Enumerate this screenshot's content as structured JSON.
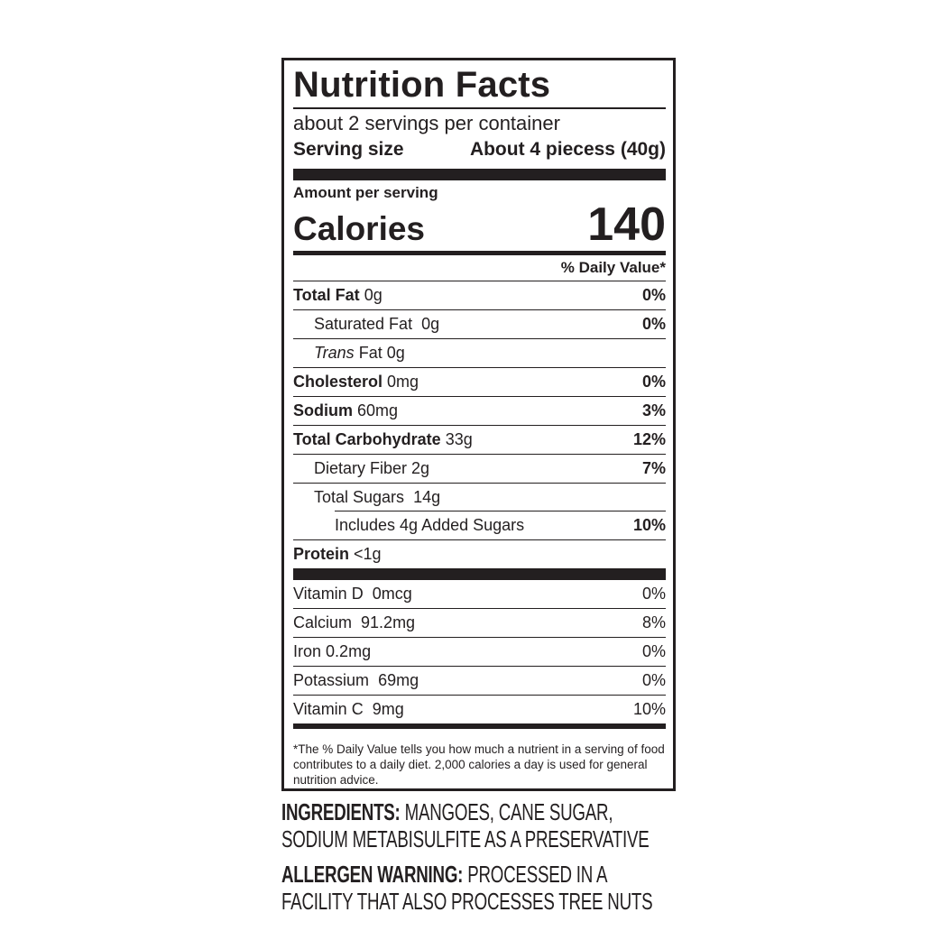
{
  "title": "Nutrition Facts",
  "servings_per_container": "about 2 servings per container",
  "serving_size": {
    "label": "Serving size",
    "value": "About 4 piecess (40g)"
  },
  "amount_per_serving": "Amount per serving",
  "calories": {
    "label": "Calories",
    "value": "140"
  },
  "daily_value_header": "% Daily Value*",
  "nutrients": [
    {
      "name": "Total Fat",
      "amount": "0g",
      "dv": "0%"
    },
    {
      "name": "Saturated Fat",
      "amount": "0g",
      "dv": "0%"
    },
    {
      "name_italic": "Trans",
      "name": "Fat",
      "amount": "0g",
      "dv": ""
    },
    {
      "name": "Cholesterol",
      "amount": "0mg",
      "dv": "0%"
    },
    {
      "name": "Sodium",
      "amount": "60mg",
      "dv": "3%"
    },
    {
      "name": "Total Carbohydrate",
      "amount": "33g",
      "dv": "12%"
    },
    {
      "name": "Dietary Fiber",
      "amount": "2g",
      "dv": "7%"
    },
    {
      "name": "Total Sugars",
      "amount": "14g",
      "dv": ""
    },
    {
      "name": "Includes 4g Added Sugars",
      "amount": "",
      "dv": "10%"
    },
    {
      "name": "Protein",
      "amount": "<1g",
      "dv": ""
    }
  ],
  "vitamins": [
    {
      "name": "Vitamin D",
      "amount": "0mcg",
      "dv": "0%"
    },
    {
      "name": "Calcium",
      "amount": "91.2mg",
      "dv": "8%"
    },
    {
      "name": "Iron",
      "amount": "0.2mg",
      "dv": "0%"
    },
    {
      "name": "Potassium",
      "amount": "69mg",
      "dv": "0%"
    },
    {
      "name": "Vitamin C",
      "amount": "9mg",
      "dv": "10%"
    }
  ],
  "footnote": "*The % Daily Value tells you how much a nutrient in a serving of food contributes to a daily diet. 2,000 calories a day is used for general nutrition advice.",
  "ingredients": {
    "label": "INGREDIENTS:",
    "text": "MANGOES, CANE SUGAR, SODIUM METABISULFITE AS A PRESERVATIVE"
  },
  "allergen": {
    "label": "ALLERGEN WARNING:",
    "text": "PROCESSED IN A FACILITY THAT ALSO PROCESSES TREE NUTS"
  }
}
